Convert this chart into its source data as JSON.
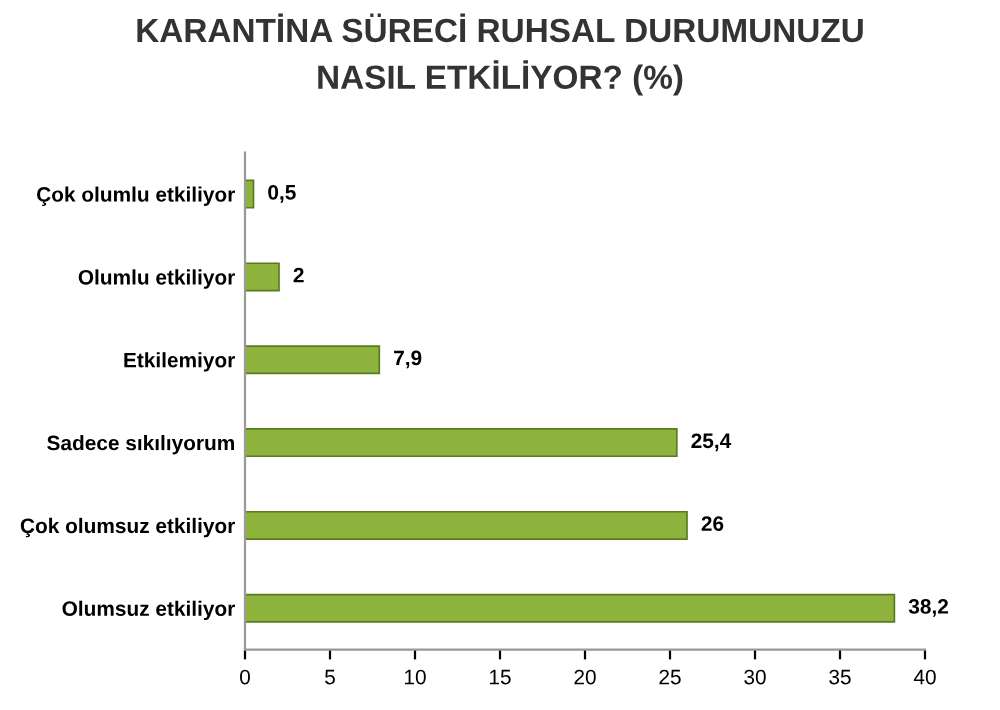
{
  "chart_data": {
    "type": "bar",
    "orientation": "horizontal",
    "title": "KARANTİNA SÜRECİ RUHSAL DURUMUNUZU\nNASIL ETKİLİYOR? (%)",
    "categories": [
      "Çok olumlu etkiliyor",
      "Olumlu etkiliyor",
      "Etkilemiyor",
      "Sadece sıkılıyorum",
      "Çok olumsuz etkiliyor",
      "Olumsuz etkiliyor"
    ],
    "values": [
      0.5,
      2,
      7.9,
      25.4,
      26,
      38.2
    ],
    "value_labels": [
      "0,5",
      "2",
      "7,9",
      "25,4",
      "26",
      "38,2"
    ],
    "color": "#8db33c",
    "xlim": [
      0,
      40
    ],
    "xticks": [
      0,
      5,
      10,
      15,
      20,
      25,
      30,
      35,
      40
    ],
    "grid": false
  }
}
